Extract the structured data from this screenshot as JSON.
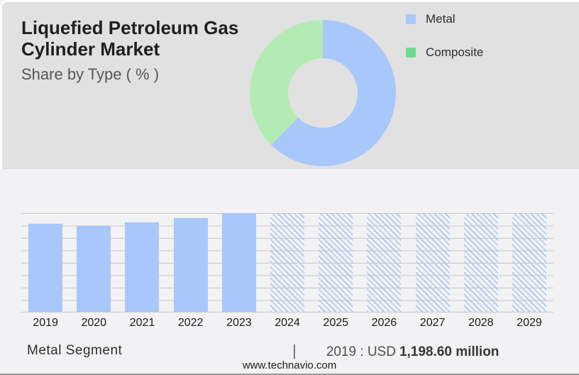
{
  "page": {
    "title": "Liquefied Petroleum Gas Cylinder Market",
    "subtitle": "Share by Type ( % )",
    "footer": {
      "segment_label": "Metal Segment",
      "separator": "|",
      "stat_label": "2019 : USD",
      "stat_value": "1,198.60 million"
    },
    "website": "www.technavio.com"
  },
  "colors": {
    "top_background": "#e1e1e2",
    "bottom_background": "#f2f2f4",
    "metal_blue": "#a8c7fa",
    "composite_green_donut": "#b4ebb4",
    "composite_green_legend": "#6fdc8c",
    "hatch_blue": "#a9c6f0",
    "gridline": "#c9c9c9"
  },
  "chart_data": [
    {
      "type": "pie",
      "subtype": "donut",
      "title": "Share by Type ( % )",
      "labels": [
        "Metal",
        "Composite"
      ],
      "values_pct_estimated": [
        62.5,
        37.5
      ],
      "slice_colors": [
        "#a8c7fa",
        "#b4ebb4"
      ],
      "hole_ratio": 0.48,
      "start_angle_deg": 0,
      "legend_position": "right",
      "legend": [
        {
          "label": "Metal",
          "swatch": "#a8c7fa"
        },
        {
          "label": "Composite",
          "swatch": "#6fdc8c"
        }
      ]
    },
    {
      "type": "bar",
      "title": "Metal Segment",
      "categories": [
        "2019",
        "2020",
        "2021",
        "2022",
        "2023",
        "2024",
        "2025",
        "2026",
        "2027",
        "2028",
        "2029"
      ],
      "series": [
        {
          "name": "Metal Segment",
          "height_pct_of_plot": [
            89.3,
            87.1,
            90.9,
            95.2,
            100,
            100,
            100,
            100,
            100,
            100,
            100
          ],
          "bar_styles": [
            "solid",
            "solid",
            "solid",
            "solid",
            "solid",
            "hatched",
            "hatched",
            "hatched",
            "hatched",
            "hatched",
            "hatched"
          ]
        }
      ],
      "historic_years": [
        "2019",
        "2020",
        "2021",
        "2022",
        "2023"
      ],
      "forecast_years_hatched": [
        "2024",
        "2025",
        "2026",
        "2027",
        "2028",
        "2029"
      ],
      "bar_color": "#a8c7fa",
      "hatch_color": "#a9c6f0",
      "gridlines": 9,
      "y_axis_labels": "none",
      "known_values": {
        "2019": 1198.6,
        "unit": "USD million"
      },
      "annotation": "2019 : USD 1,198.60 million"
    }
  ]
}
